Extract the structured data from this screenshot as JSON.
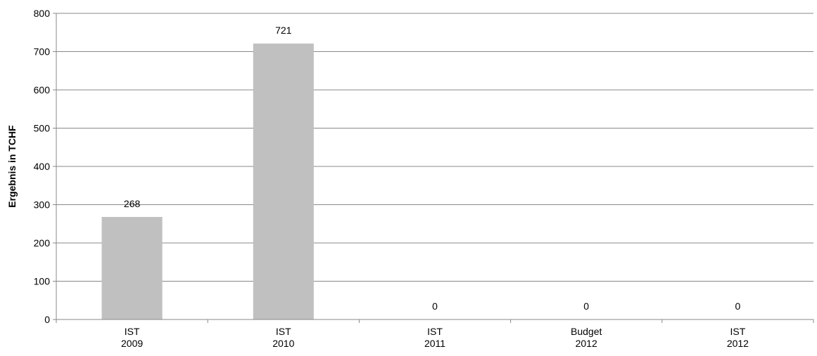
{
  "chart_data": {
    "type": "bar",
    "ylabel": "Ergebnis in TCHF",
    "ylim": [
      0,
      800
    ],
    "yticks": [
      0,
      100,
      200,
      300,
      400,
      500,
      600,
      700,
      800
    ],
    "grid": true,
    "legend": "none",
    "categories": [
      [
        "IST",
        "2009"
      ],
      [
        "IST",
        "2010"
      ],
      [
        "IST",
        "2011"
      ],
      [
        "Budget",
        "2012"
      ],
      [
        "IST",
        "2012"
      ]
    ],
    "values": [
      268,
      721,
      0,
      0,
      0
    ],
    "data_labels": [
      "268",
      "721",
      "0",
      "0",
      "0"
    ],
    "bar_color": "#c0c0c0",
    "grid_color": "#888888"
  }
}
